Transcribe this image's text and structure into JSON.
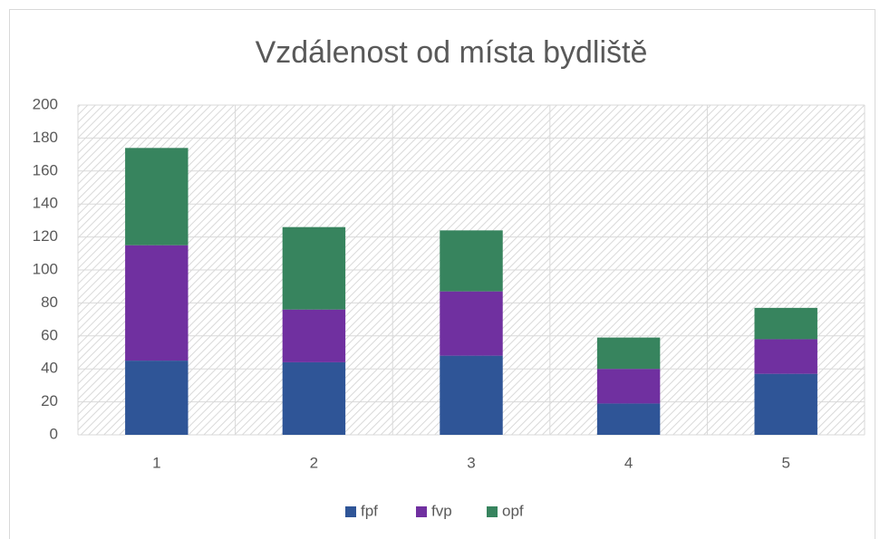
{
  "chart_data": {
    "type": "stacked_bar",
    "title": "Vzdálenost od místa bydliště",
    "categories": [
      "1",
      "2",
      "3",
      "4",
      "5"
    ],
    "series": [
      {
        "name": "fpf",
        "color": "#2f5597",
        "values": [
          45,
          44,
          48,
          19,
          37
        ]
      },
      {
        "name": "fvp",
        "color": "#7030a0",
        "values": [
          70,
          32,
          39,
          21,
          21
        ]
      },
      {
        "name": "opf",
        "color": "#37845e",
        "values": [
          59,
          50,
          37,
          19,
          19
        ]
      }
    ],
    "ylim": [
      0,
      200
    ],
    "yticks": [
      0,
      20,
      40,
      60,
      80,
      100,
      120,
      140,
      160,
      180,
      200
    ],
    "grid": true,
    "legend": "bottom"
  }
}
